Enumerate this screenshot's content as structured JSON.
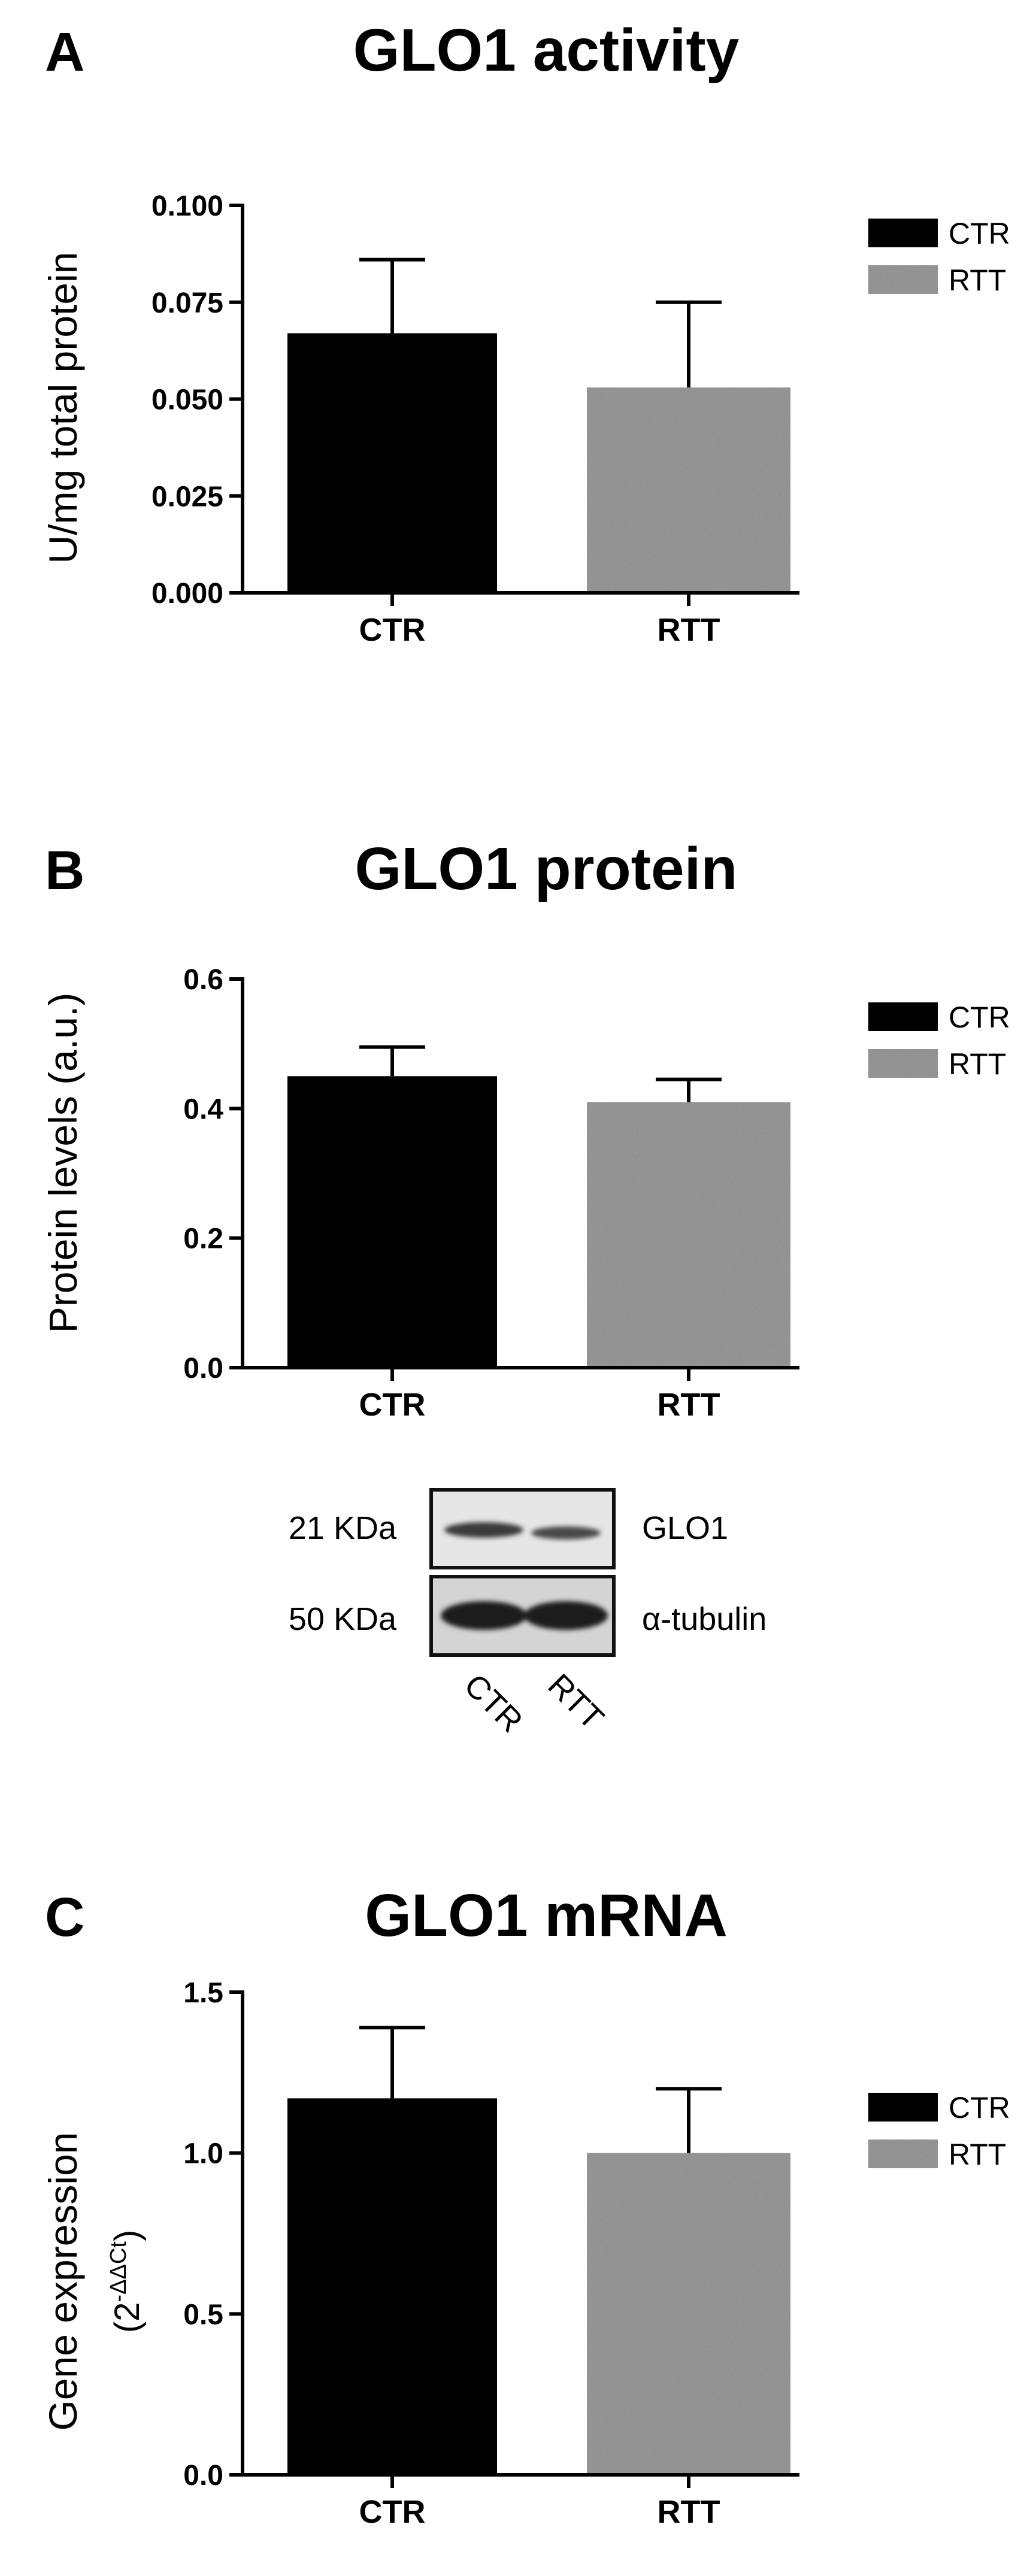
{
  "panels": [
    {
      "letter": "A",
      "title": "GLO1 activity",
      "ylabel": "U/mg total protein",
      "legend": [
        "CTR",
        "RTT"
      ]
    },
    {
      "letter": "B",
      "title": "GLO1 protein",
      "ylabel": "Protein levels (a.u.)",
      "legend": [
        "CTR",
        "RTT"
      ]
    },
    {
      "letter": "C",
      "title": "GLO1 mRNA",
      "ylabel": "Gene expression",
      "ylabel2_base": "(2",
      "ylabel2_sup": "-ΔΔCt",
      "ylabel2_end": ")",
      "legend": [
        "CTR",
        "RTT"
      ]
    }
  ],
  "colors": {
    "CTR": "#000000",
    "RTT": "#8c8c8c"
  },
  "chart_data": [
    {
      "type": "bar",
      "title": "GLO1 activity",
      "ylabel": "U/mg total protein",
      "categories": [
        "CTR",
        "RTT"
      ],
      "values": [
        0.067,
        0.053
      ],
      "errors": [
        0.019,
        0.022
      ],
      "ylim": [
        0,
        0.1
      ],
      "yticks": [
        "0.000",
        "0.025",
        "0.050",
        "0.075",
        "0.100"
      ],
      "legend_position": "right"
    },
    {
      "type": "bar",
      "title": "GLO1 protein",
      "ylabel": "Protein levels (a.u.)",
      "categories": [
        "CTR",
        "RTT"
      ],
      "values": [
        0.45,
        0.41
      ],
      "errors": [
        0.045,
        0.035
      ],
      "ylim": [
        0,
        0.6
      ],
      "yticks": [
        "0.0",
        "0.2",
        "0.4",
        "0.6"
      ],
      "legend_position": "right"
    },
    {
      "type": "bar",
      "title": "GLO1 mRNA",
      "ylabel": "Gene expression (2-ΔΔCt)",
      "categories": [
        "CTR",
        "RTT"
      ],
      "values": [
        1.17,
        1.0
      ],
      "errors": [
        0.22,
        0.2
      ],
      "ylim": [
        0,
        1.5
      ],
      "yticks": [
        "0.0",
        "0.5",
        "1.0",
        "1.5"
      ],
      "legend_position": "right"
    }
  ],
  "blot": {
    "rows": [
      {
        "mw": "21 KDa",
        "protein": "GLO1"
      },
      {
        "mw": "50 KDa",
        "protein": "α-tubulin"
      }
    ],
    "lanes": [
      "CTR",
      "RTT"
    ]
  }
}
